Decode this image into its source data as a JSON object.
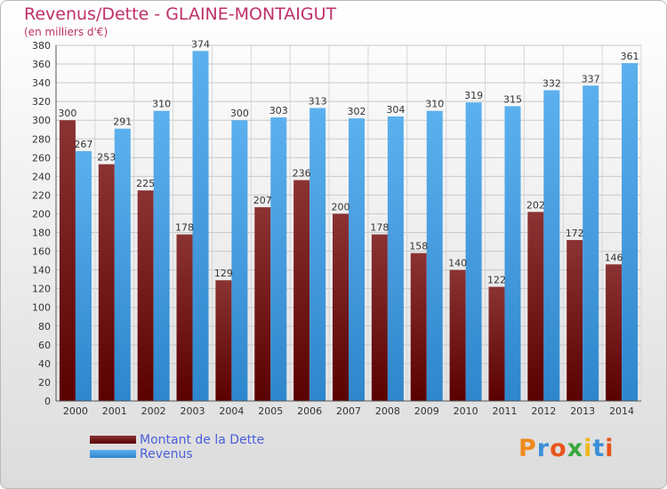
{
  "header": {
    "title": "Revenus/Dette - GLAINE-MONTAIGUT",
    "subtitle": "(en milliers d'€)"
  },
  "chart_data": {
    "type": "bar",
    "categories": [
      "2000",
      "2001",
      "2002",
      "2003",
      "2004",
      "2005",
      "2006",
      "2007",
      "2008",
      "2009",
      "2010",
      "2011",
      "2012",
      "2013",
      "2014"
    ],
    "series": [
      {
        "name": "Montant de la Dette",
        "color": "#7a1f1f",
        "values": [
          300,
          253,
          225,
          178,
          129,
          207,
          236,
          200,
          178,
          158,
          140,
          122,
          202,
          172,
          146
        ]
      },
      {
        "name": "Revenus",
        "color": "#3d9be0",
        "values": [
          267,
          291,
          310,
          374,
          300,
          303,
          313,
          302,
          304,
          310,
          319,
          315,
          332,
          337,
          361
        ]
      }
    ],
    "ylim": [
      0,
      380
    ],
    "ytick_step": 20,
    "grid": true,
    "legend_position": "bottom-left"
  },
  "legend": {
    "items": [
      {
        "label": "Montant de la Dette",
        "color": "#7a1f1f"
      },
      {
        "label": "Revenus",
        "color": "#3d9be0"
      }
    ]
  },
  "logo": {
    "text": "Proxiti"
  }
}
